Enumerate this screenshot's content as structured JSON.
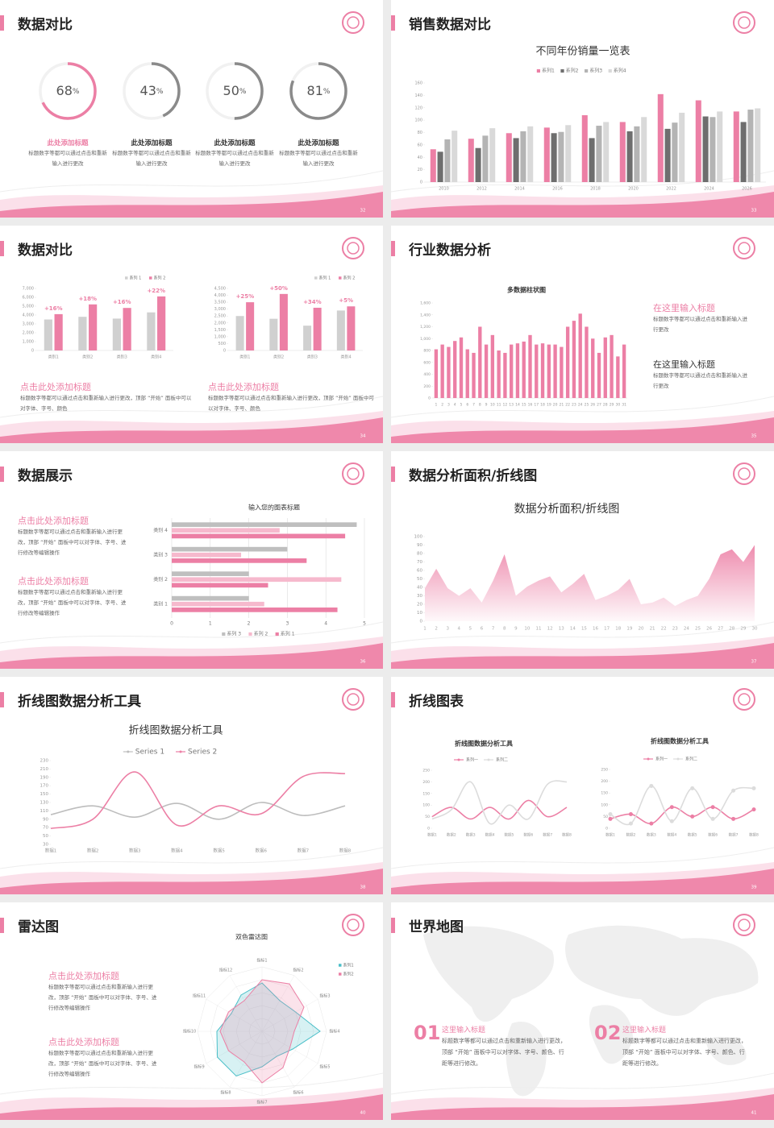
{
  "slides": [
    {
      "title": "数据对比",
      "page": 32,
      "chart": {
        "type": "donut",
        "unit": "%",
        "range": [
          0,
          100
        ],
        "values": [
          68,
          43,
          50,
          81
        ],
        "colors": [
          "#ec7fa5",
          "#8a8a8a",
          "#8a8a8a",
          "#8a8a8a"
        ]
      },
      "blocks": [
        {
          "heading": "此处添加标题",
          "text": "标题数字等都可以通过点击和重新输入进行更改"
        },
        {
          "heading": "此处添加标题",
          "text": "标题数字等都可以通过点击和重新输入进行更改"
        },
        {
          "heading": "此处添加标题",
          "text": "标题数字等都可以通过点击和重新输入进行更改"
        },
        {
          "heading": "此处添加标题",
          "text": "标题数字等都可以通过点击和重新输入进行更改"
        }
      ]
    },
    {
      "title": "销售数据对比",
      "page": 33,
      "chart": {
        "type": "bar",
        "title": "不同年份销量一览表",
        "categories": [
          "2010",
          "2012",
          "2014",
          "2016",
          "2018",
          "2020",
          "2022",
          "2024",
          "2026"
        ],
        "series": [
          {
            "name": "系列1",
            "color": "#ec7fa5",
            "values": [
              53,
              70,
              79,
              88,
              108,
              97,
              142,
              132,
              114
            ]
          },
          {
            "name": "系列2",
            "color": "#6e6e6e",
            "values": [
              49,
              55,
              71,
              79,
              71,
              82,
              86,
              106,
              97
            ]
          },
          {
            "name": "系列3",
            "color": "#b4b4b4",
            "values": [
              69,
              75,
              82,
              81,
              91,
              90,
              96,
              105,
              117
            ]
          },
          {
            "name": "系列4",
            "color": "#d9d9d9",
            "values": [
              83,
              87,
              90,
              92,
              97,
              105,
              112,
              114,
              119
            ]
          }
        ],
        "ylim": [
          0,
          160
        ],
        "yticks": [
          0,
          20,
          40,
          60,
          80,
          100,
          120,
          140,
          160
        ],
        "grid": false
      }
    },
    {
      "title": "数据对比",
      "page": 34,
      "charts": [
        {
          "type": "bar",
          "categories": [
            "类别1",
            "类别2",
            "类别3",
            "类别4"
          ],
          "series": [
            {
              "name": "系列 1",
              "color": "#d0d0d0",
              "values": [
                3500,
                3800,
                3600,
                4300
              ]
            },
            {
              "name": "系列 2",
              "color": "#ec7fa5",
              "values": [
                4100,
                5200,
                4800,
                6100
              ]
            }
          ],
          "ylim": [
            0,
            7000
          ],
          "yticks": [
            0,
            {
              "value": 1000,
              "label": "1,000"
            },
            {
              "value": 2000,
              "label": "2,000"
            },
            {
              "value": 3000,
              "label": "3,000"
            },
            {
              "value": 4000,
              "label": "4,000"
            },
            {
              "value": 5000,
              "label": "5,000"
            },
            {
              "value": 6000,
              "label": "6,000"
            },
            {
              "value": 7000,
              "label": "7,000"
            }
          ],
          "grid": false,
          "annotations": [
            "+16%",
            "+18%",
            "+16%",
            "+22%"
          ]
        },
        {
          "type": "bar",
          "categories": [
            "类别1",
            "类别2",
            "类别3",
            "类别4"
          ],
          "series": [
            {
              "name": "系列 1",
              "color": "#d0d0d0",
              "values": [
                2500,
                2300,
                1800,
                2900
              ]
            },
            {
              "name": "系列 2",
              "color": "#ec7fa5",
              "values": [
                3500,
                4100,
                3100,
                3200
              ]
            }
          ],
          "ylim": [
            0,
            4500
          ],
          "yticks": [
            0,
            500,
            {
              "value": 1000,
              "label": "1,000"
            },
            {
              "value": 1500,
              "label": "1,500"
            },
            {
              "value": 2000,
              "label": "2,000"
            },
            {
              "value": 2500,
              "label": "2,500"
            },
            {
              "value": 3000,
              "label": "3,000"
            },
            {
              "value": 3500,
              "label": "3,500"
            },
            {
              "value": 4000,
              "label": "4,000"
            },
            {
              "value": 4500,
              "label": "4,500"
            }
          ],
          "grid": false,
          "annotations": [
            "+25%",
            "+50%",
            "+34%",
            "+5%"
          ]
        }
      ],
      "blocks": [
        {
          "heading": "点击此处添加标题",
          "text": "标题数字等都可以通过点击和重新输入进行更改，顶部 “开始” 面板中可以对字体、字号、颜色"
        },
        {
          "heading": "点击此处添加标题",
          "text": "标题数字等都可以通过点击和重新输入进行更改，顶部 “开始” 面板中可以对字体、字号、颜色"
        }
      ]
    },
    {
      "title": "行业数据分析",
      "page": 35,
      "chart": {
        "type": "bar",
        "title": "多数据柱状图",
        "categories": [
          "1",
          "2",
          "3",
          "4",
          "5",
          "6",
          "7",
          "8",
          "9",
          "10",
          "11",
          "12",
          "13",
          "14",
          "15",
          "16",
          "17",
          "18",
          "19",
          "20",
          "21",
          "22",
          "23",
          "24",
          "25",
          "26",
          "27",
          "28",
          "29",
          "30",
          "31"
        ],
        "values": [
          820,
          900,
          860,
          960,
          1020,
          820,
          760,
          1200,
          900,
          1060,
          800,
          760,
          900,
          920,
          950,
          1060,
          900,
          920,
          900,
          900,
          860,
          1200,
          1300,
          1420,
          1200,
          1000,
          760,
          1020,
          1060,
          700,
          900
        ],
        "color": "#ec7fa5",
        "ylim": [
          0,
          1600
        ],
        "yticks": [
          0,
          200,
          400,
          600,
          800,
          {
            "value": 1000,
            "label": "1,000"
          },
          {
            "value": 1200,
            "label": "1,200"
          },
          {
            "value": 1400,
            "label": "1,400"
          },
          {
            "value": 1600,
            "label": "1,600"
          }
        ],
        "grid": false
      },
      "blocks": [
        {
          "heading": "在这里输入标题",
          "text": "标题数字等都可以通过点击和重新输入进行更改"
        },
        {
          "heading": "在这里输入标题",
          "text": "标题数字等都可以通过点击和重新输入进行更改"
        }
      ]
    },
    {
      "title": "数据展示",
      "page": 36,
      "chart": {
        "type": "barh",
        "title": "输入您的图表标题",
        "categories": [
          "类别 1",
          "类别 2",
          "类别 3",
          "类别 4"
        ],
        "series": [
          {
            "name": "系列 1",
            "color": "#ec7fa5",
            "values": [
              4.3,
              2.5,
              3.5,
              4.5
            ]
          },
          {
            "name": "系列 2",
            "color": "#f6b9cd",
            "values": [
              2.4,
              4.4,
              1.8,
              2.8
            ]
          },
          {
            "name": "系列 3",
            "color": "#bfbfbf",
            "values": [
              2,
              2,
              3,
              4.8
            ]
          }
        ],
        "xlim": [
          0,
          5
        ],
        "xticks": [
          0,
          1,
          2,
          3,
          4,
          5
        ],
        "grid": true
      },
      "blocks": [
        {
          "heading": "点击此处添加标题",
          "text": "标题数字等都可以通过点击和重新输入进行更改，顶部 “开始” 面板中可以对字体、字号、进行修改等编辑操作"
        },
        {
          "heading": "点击此处添加标题",
          "text": "标题数字等都可以通过点击和重新输入进行更改，顶部 “开始” 面板中可以对字体、字号、进行修改等编辑操作"
        }
      ]
    },
    {
      "title": "数据分析面积/折线图",
      "page": 37,
      "chart": {
        "type": "area",
        "title": "数据分析面积/折线图",
        "x": [
          1,
          2,
          3,
          4,
          5,
          6,
          7,
          8,
          9,
          10,
          11,
          12,
          13,
          14,
          15,
          16,
          17,
          18,
          19,
          20,
          21,
          22,
          23,
          24,
          25,
          26,
          27,
          28,
          29,
          30
        ],
        "values": [
          39,
          62,
          39,
          30,
          39,
          22,
          48,
          79,
          30,
          41,
          48,
          53,
          34,
          44,
          56,
          25,
          30,
          37,
          50,
          20,
          22,
          28,
          18,
          25,
          30,
          50,
          79,
          85,
          70,
          90
        ],
        "color": "#ec7fa5",
        "xlim": [
          1,
          30
        ],
        "ylim": [
          0,
          100
        ],
        "yticks": [
          0,
          10,
          20,
          30,
          40,
          50,
          60,
          70,
          80,
          90,
          100
        ],
        "grid": false
      }
    },
    {
      "title": "折线图数据分析工具",
      "page": 38,
      "chart": {
        "type": "line",
        "title": "折线图数据分析工具",
        "categories": [
          "数据1",
          "数据2",
          "数据3",
          "数据4",
          "数据5",
          "数据6",
          "数据7",
          "数据8"
        ],
        "series": [
          {
            "name": "Series 1",
            "color": "#bdbdbd",
            "values": [
              101,
              122,
              95,
              128,
              90,
              130,
              99,
              122
            ]
          },
          {
            "name": "Series 2",
            "color": "#ec7fa5",
            "values": [
              68,
              90,
              203,
              76,
              122,
              103,
              192,
              199
            ]
          }
        ],
        "ylim": [
          30,
          230
        ],
        "yticks": [
          30,
          50,
          70,
          90,
          110,
          130,
          150,
          170,
          190,
          210,
          230
        ],
        "grid": false,
        "smooth": true,
        "markers": false
      }
    },
    {
      "title": "折线图表",
      "page": 39,
      "charts": [
        {
          "type": "line",
          "title": "折线图数据分析工具",
          "categories": [
            "数据1",
            "数据2",
            "数据3",
            "数据4",
            "数据5",
            "数据6",
            "数据7",
            "数据8"
          ],
          "series": [
            {
              "name": "系列一",
              "color": "#ec7fa5",
              "values": [
                50,
                90,
                40,
                90,
                40,
                120,
                50,
                90
              ]
            },
            {
              "name": "系列二",
              "color": "#dcdcdc",
              "values": [
                40,
                80,
                200,
                20,
                100,
                40,
                190,
                200
              ]
            }
          ],
          "ylim": [
            0,
            250
          ],
          "yticks": [
            0,
            50,
            100,
            150,
            200,
            250
          ],
          "grid": false,
          "smooth": true,
          "markers": false
        },
        {
          "type": "line",
          "title": "折线图数据分析工具",
          "categories": [
            "数据1",
            "数据2",
            "数据3",
            "数据4",
            "数据5",
            "数据6",
            "数据7",
            "数据8"
          ],
          "series": [
            {
              "name": "系列一",
              "color": "#ec7fa5",
              "values": [
                40,
                60,
                20,
                90,
                50,
                90,
                40,
                80
              ]
            },
            {
              "name": "系列二",
              "color": "#dcdcdc",
              "values": [
                60,
                20,
                180,
                30,
                170,
                40,
                160,
                170
              ]
            }
          ],
          "ylim": [
            0,
            250
          ],
          "yticks": [
            0,
            50,
            100,
            150,
            200,
            250
          ],
          "grid": false,
          "smooth": true,
          "markers": true
        }
      ]
    },
    {
      "title": "雷达图",
      "page": 40,
      "chart": {
        "type": "radar",
        "title": "双色雷达图",
        "categories": [
          "指标1",
          "指标2",
          "指标3",
          "指标4",
          "指标5",
          "指标6",
          "指标7",
          "指标8",
          "指标9",
          "指标10",
          "指标11",
          "指标12"
        ],
        "series": [
          {
            "name": "系列1",
            "color": "#4bbfc8",
            "values": [
              75,
              55,
              60,
              90,
              55,
              45,
              55,
              80,
              80,
              70,
              55,
              65
            ]
          },
          {
            "name": "系列2",
            "color": "#ec7fa5",
            "values": [
              80,
              85,
              75,
              50,
              50,
              65,
              80,
              55,
              60,
              65,
              60,
              55
            ]
          }
        ],
        "rlim": [
          0,
          100
        ]
      },
      "blocks": [
        {
          "heading": "点击此处添加标题",
          "text": "标题数字等都可以通过点击和重新输入进行更改，顶部 “开始” 面板中可以对字体、字号、进行修改等编辑操作"
        },
        {
          "heading": "点击此处添加标题",
          "text": "标题数字等都可以通过点击和重新输入进行更改，顶部 “开始” 面板中可以对字体、字号、进行修改等编辑操作"
        }
      ]
    },
    {
      "title": "世界地图",
      "page": 41,
      "items": [
        {
          "number": "01",
          "heading": "这里输入标题",
          "text": "标题数字等都可以通过点击和重新输入进行更改，顶部 “开始” 面板中可以对字体、字号、颜色、行距等进行修改。"
        },
        {
          "number": "02",
          "heading": "这里输入标题",
          "text": "标题数字等都可以通过点击和重新输入进行更改，顶部 “开始” 面板中可以对字体、字号、颜色、行距等进行修改。"
        }
      ]
    }
  ]
}
